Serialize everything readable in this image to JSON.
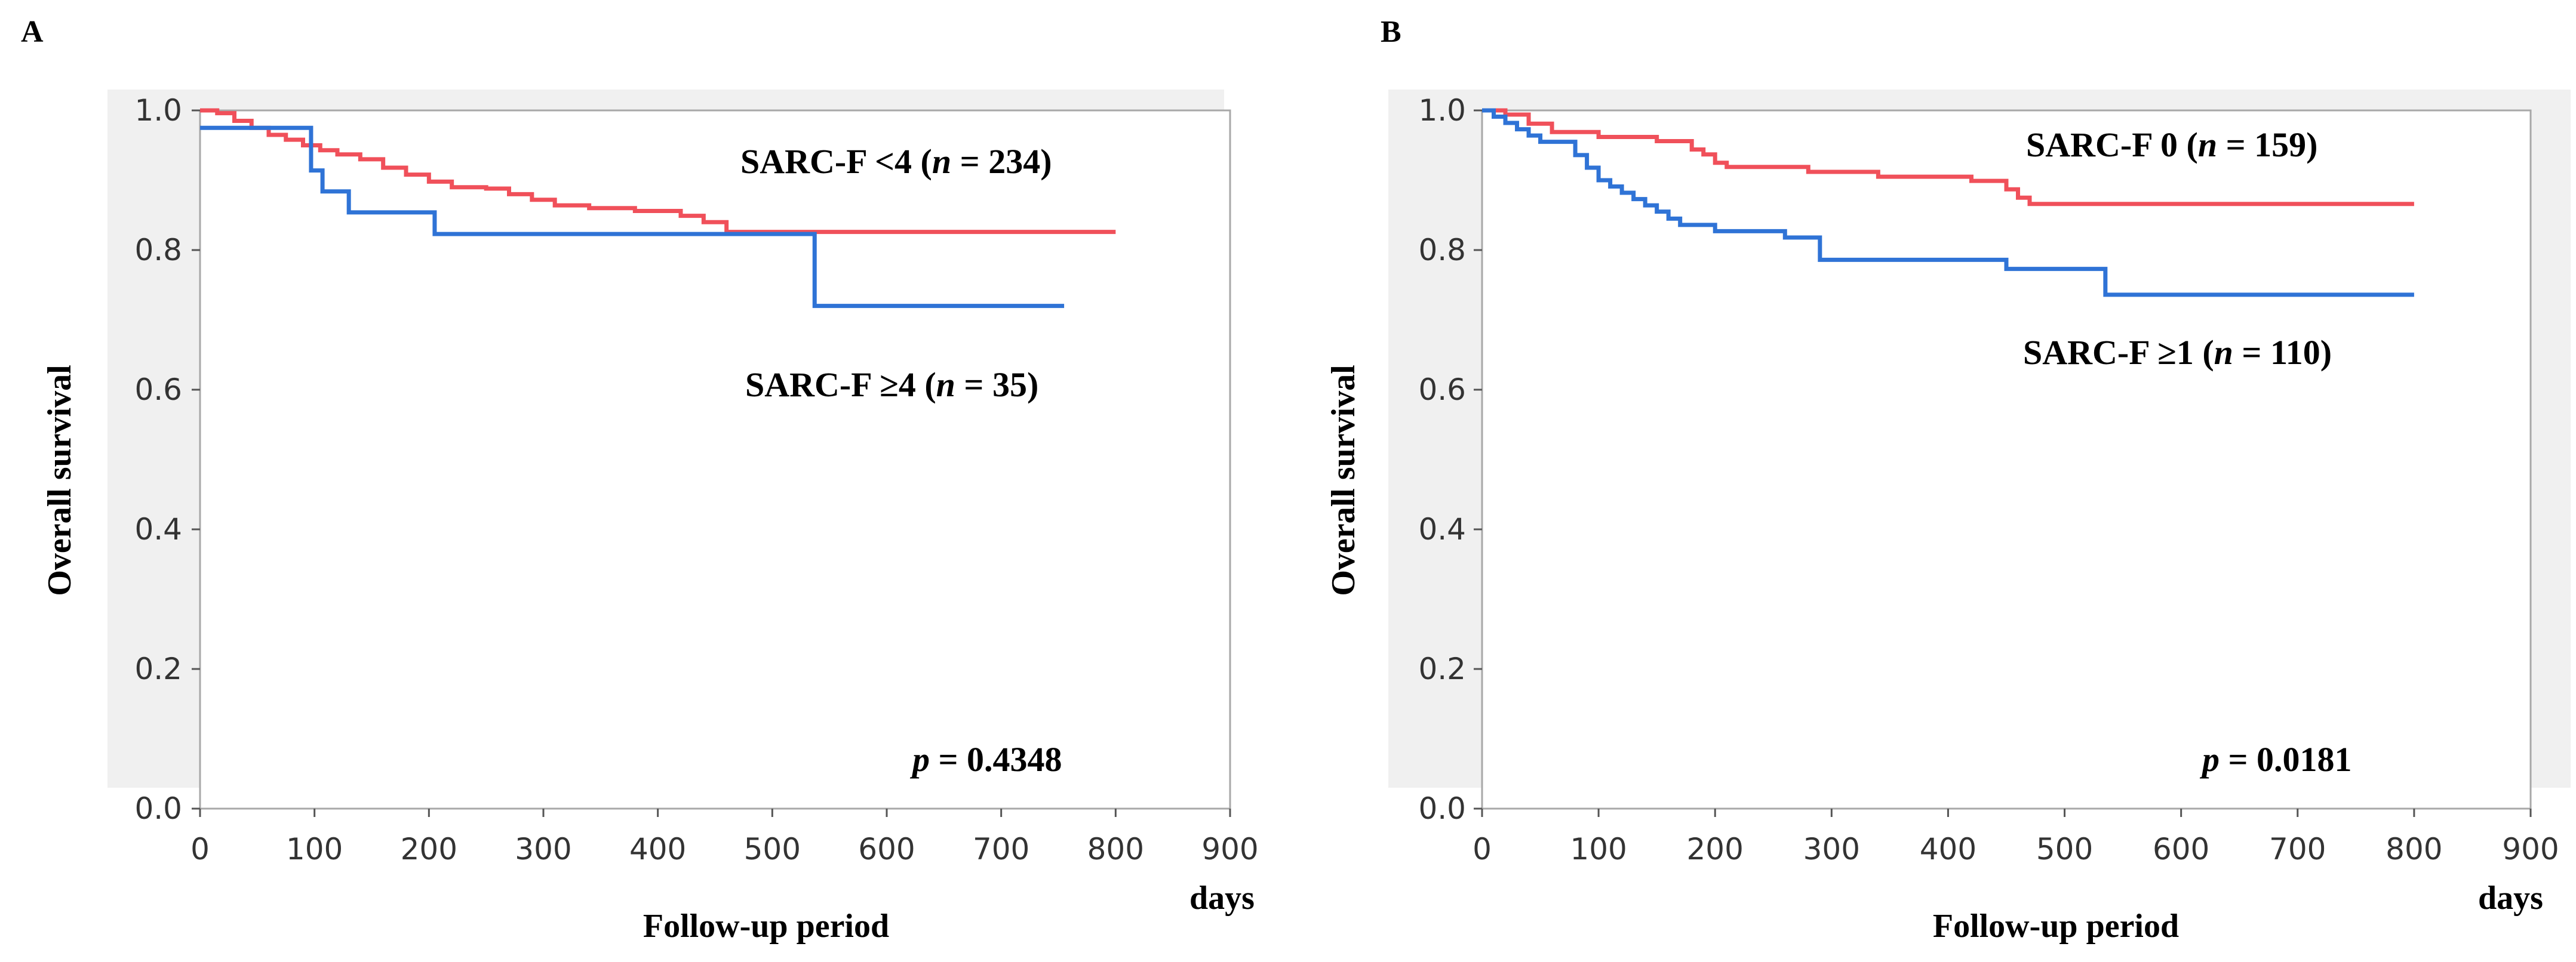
{
  "chart_data": [
    {
      "panel": "A",
      "type": "line",
      "title": "",
      "xlabel": "Follow-up period",
      "xunit": "days",
      "ylabel": "Overall survival",
      "xlim": [
        0,
        900
      ],
      "ylim": [
        0,
        1
      ],
      "xticks": [
        "0",
        "100",
        "200",
        "300",
        "400",
        "500",
        "600",
        "700",
        "800",
        "900"
      ],
      "yticks": [
        "0.0",
        "0.2",
        "0.4",
        "0.6",
        "0.8",
        "1.0"
      ],
      "grid": false,
      "p_label": "p",
      "p_value": " = 0.4348",
      "series": [
        {
          "name": "SARC-F <4",
          "legend_prefix": "SARC-F <4 (",
          "legend_n": "n",
          "legend_suffix": " = 234)",
          "color": "#f0505a",
          "x": [
            0,
            15,
            30,
            45,
            60,
            75,
            90,
            105,
            120,
            140,
            160,
            180,
            200,
            220,
            250,
            270,
            290,
            310,
            340,
            380,
            420,
            440,
            460,
            800
          ],
          "y": [
            1.0,
            0.996,
            0.985,
            0.975,
            0.965,
            0.958,
            0.95,
            0.943,
            0.937,
            0.93,
            0.918,
            0.908,
            0.898,
            0.89,
            0.888,
            0.88,
            0.872,
            0.864,
            0.86,
            0.856,
            0.849,
            0.84,
            0.826,
            0.826
          ]
        },
        {
          "name": "SARC-F ≥4",
          "legend_prefix": "SARC-F ≥4 (",
          "legend_n": "n",
          "legend_suffix": " = 35)",
          "color": "#2f73d6",
          "x": [
            0,
            97,
            107,
            130,
            205,
            537,
            755
          ],
          "y": [
            0.975,
            0.914,
            0.884,
            0.854,
            0.823,
            0.72,
            0.72
          ]
        }
      ]
    },
    {
      "panel": "B",
      "type": "line",
      "title": "",
      "xlabel": "Follow-up period",
      "xunit": "days",
      "ylabel": "Overall survival",
      "xlim": [
        0,
        900
      ],
      "ylim": [
        0,
        1
      ],
      "xticks": [
        "0",
        "100",
        "200",
        "300",
        "400",
        "500",
        "600",
        "700",
        "800",
        "900"
      ],
      "yticks": [
        "0.0",
        "0.2",
        "0.4",
        "0.6",
        "0.8",
        "1.0"
      ],
      "grid": false,
      "p_label": "p",
      "p_value": " = 0.0181",
      "series": [
        {
          "name": "SARC-F 0",
          "legend_prefix": "SARC-F 0 (",
          "legend_n": "n",
          "legend_suffix": " = 159)",
          "color": "#f0505a",
          "x": [
            0,
            20,
            40,
            60,
            100,
            150,
            180,
            190,
            200,
            210,
            230,
            280,
            340,
            420,
            450,
            460,
            470,
            800
          ],
          "y": [
            1.0,
            0.994,
            0.981,
            0.969,
            0.962,
            0.956,
            0.944,
            0.937,
            0.925,
            0.919,
            0.919,
            0.912,
            0.905,
            0.899,
            0.887,
            0.875,
            0.866,
            0.866
          ]
        },
        {
          "name": "SARC-F ≥1",
          "legend_prefix": "SARC-F ≥1 (",
          "legend_n": "n",
          "legend_suffix": " = 110)",
          "color": "#2f73d6",
          "x": [
            0,
            10,
            20,
            30,
            40,
            50,
            60,
            80,
            90,
            100,
            110,
            120,
            130,
            140,
            150,
            160,
            170,
            200,
            260,
            290,
            450,
            535,
            800
          ],
          "y": [
            1.0,
            0.991,
            0.982,
            0.973,
            0.964,
            0.955,
            0.955,
            0.936,
            0.918,
            0.9,
            0.891,
            0.882,
            0.873,
            0.864,
            0.855,
            0.845,
            0.836,
            0.827,
            0.818,
            0.786,
            0.773,
            0.736,
            0.736
          ]
        }
      ]
    }
  ]
}
